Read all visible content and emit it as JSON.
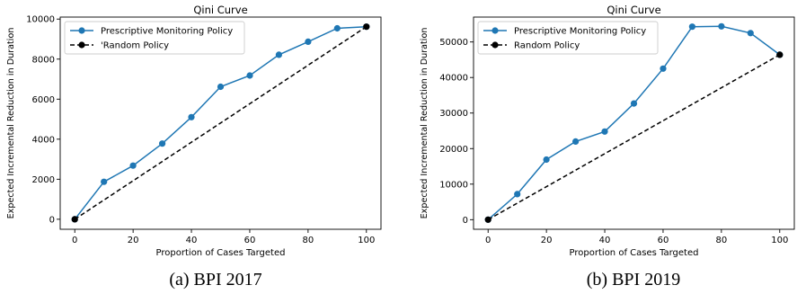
{
  "figures": [
    {
      "caption": "(a) BPI 2017"
    },
    {
      "caption": "(b) BPI 2019"
    }
  ],
  "chart_data": [
    {
      "type": "line",
      "title": "Qini Curve",
      "xlabel": "Proportion of Cases Targeted",
      "ylabel": "Expected Incremental Reduction in Duration",
      "xlim": [
        -5,
        105
      ],
      "ylim": [
        -500,
        10100
      ],
      "xticks": [
        0,
        20,
        40,
        60,
        80,
        100
      ],
      "yticks": [
        0,
        2000,
        4000,
        6000,
        8000,
        10000
      ],
      "grid": false,
      "legend_position": "upper left",
      "series": [
        {
          "name": "Prescriptive Monitoring Policy",
          "color": "#1f77b4",
          "style": "solid",
          "marker": "circle",
          "x": [
            0,
            10,
            20,
            30,
            40,
            50,
            60,
            70,
            80,
            90,
            100
          ],
          "y": [
            0,
            1870,
            2680,
            3780,
            5100,
            6620,
            7180,
            8220,
            8870,
            9540,
            9620
          ]
        },
        {
          "name": "'Random Policy",
          "color": "#000000",
          "style": "dashed",
          "marker": "circle",
          "x": [
            0,
            100
          ],
          "y": [
            0,
            9620
          ]
        }
      ]
    },
    {
      "type": "line",
      "title": "Qini Curve",
      "xlabel": "Proportion of Cases Targeted",
      "ylabel": "Expected Incremental Reduction in Duration",
      "xlim": [
        -5,
        105
      ],
      "ylim": [
        -2700,
        57000
      ],
      "xticks": [
        0,
        20,
        40,
        60,
        80,
        100
      ],
      "yticks": [
        0,
        10000,
        20000,
        30000,
        40000,
        50000
      ],
      "grid": false,
      "legend_position": "upper left",
      "series": [
        {
          "name": "Prescriptive Monitoring Policy",
          "color": "#1f77b4",
          "style": "solid",
          "marker": "circle",
          "x": [
            0,
            10,
            20,
            30,
            40,
            50,
            60,
            70,
            80,
            90,
            100
          ],
          "y": [
            0,
            7200,
            16900,
            22000,
            24800,
            32700,
            42500,
            54300,
            54400,
            52500,
            46400
          ]
        },
        {
          "name": "Random Policy",
          "color": "#000000",
          "style": "dashed",
          "marker": "circle",
          "x": [
            0,
            100
          ],
          "y": [
            0,
            46400
          ]
        }
      ]
    }
  ]
}
